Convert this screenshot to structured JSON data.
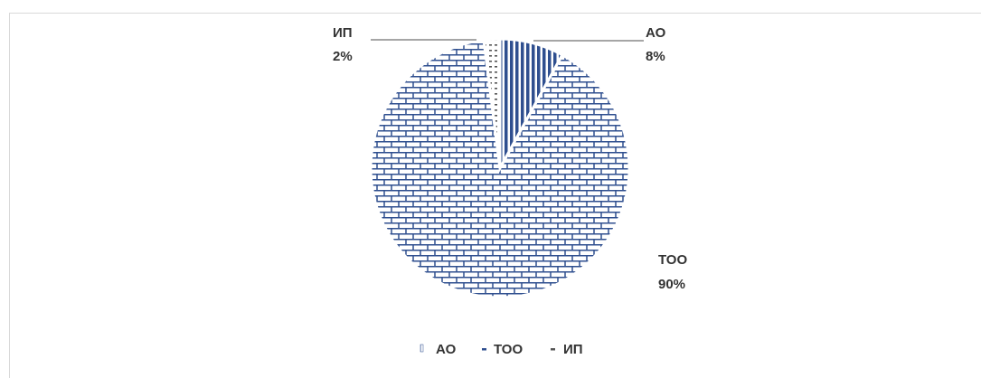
{
  "chart_data": {
    "type": "pie",
    "categories": [
      "АО",
      "ТОО",
      "ИП"
    ],
    "values": [
      8,
      90,
      2
    ],
    "data_labels": [
      {
        "name": "АО",
        "pct": "8%"
      },
      {
        "name": "ТОО",
        "pct": "90%"
      },
      {
        "name": "ИП",
        "pct": "2%"
      }
    ],
    "legend": [
      "АО",
      "ТОО",
      "ИП"
    ],
    "legend_position": "bottom",
    "title": "",
    "colors": {
      "ao": "#2f4f8f",
      "too": "#2f4f8f",
      "ip": "#555555"
    }
  }
}
